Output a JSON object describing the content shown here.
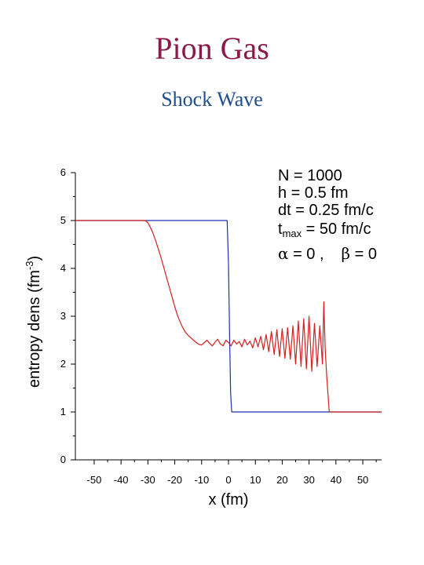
{
  "slide": {
    "title": "Pion Gas",
    "subtitle": "Shock Wave"
  },
  "chart_data": {
    "type": "line",
    "xlabel": "x (fm)",
    "ylabel_parts": [
      "entropy de",
      "ns (",
      "fm",
      "-3",
      ")"
    ],
    "xlim": [
      -57,
      57
    ],
    "ylim": [
      0,
      6
    ],
    "x_ticks": [
      "-50",
      "-40",
      "-30",
      "-20",
      "-10",
      "0",
      "10",
      "20",
      "30",
      "40",
      "50"
    ],
    "x_tick_values": [
      -50,
      -40,
      -30,
      -20,
      -10,
      0,
      10,
      20,
      30,
      40,
      50
    ],
    "y_ticks": [
      "0",
      "1",
      "2",
      "3",
      "4",
      "5",
      "6"
    ],
    "y_tick_values": [
      0,
      1,
      2,
      3,
      4,
      5,
      6
    ],
    "parameters": {
      "n": "N = 1000",
      "h": "h = 0.5 fm",
      "dt": "dt = 0.25 fm/c",
      "tmax_main": "t",
      "tmax_sub": "max",
      "tmax_rest": " = 50 fm/c",
      "alpha": "α",
      "alpha_rest": " = 0 ,",
      "beta": "β",
      "beta_rest": " = 0"
    },
    "colors": {
      "blue": "#1f2fb0",
      "red": "#d42020"
    },
    "series": [
      {
        "color": "blue",
        "x": [
          -57,
          -0.5,
          0.0,
          0.4,
          0.8,
          1.2,
          57
        ],
        "y": [
          5.0,
          5.0,
          4.1,
          2.6,
          1.4,
          1.0,
          1.0
        ]
      },
      {
        "color": "red",
        "x": [
          -57,
          -31,
          -30,
          -29,
          -28,
          -27,
          -26,
          -25,
          -24,
          -23,
          -22,
          -21,
          -20,
          -19,
          -18,
          -17,
          -16,
          -15,
          -14,
          -13,
          -12,
          -11,
          -10,
          -9,
          -8,
          -7,
          -6,
          -5,
          -4,
          -3,
          -2,
          -1,
          0,
          1,
          2,
          3,
          4,
          5,
          6,
          7,
          8,
          9,
          10,
          11,
          12,
          13,
          14,
          15,
          16,
          17,
          18,
          19,
          20,
          21,
          22,
          23,
          24,
          25,
          26,
          27,
          28,
          29,
          30,
          31,
          32,
          33,
          34,
          35,
          35.5,
          36,
          36.5,
          37,
          37.5,
          38,
          57
        ],
        "y": [
          5.0,
          5.0,
          4.95,
          4.85,
          4.72,
          4.56,
          4.38,
          4.2,
          4.0,
          3.8,
          3.6,
          3.4,
          3.2,
          3.02,
          2.88,
          2.76,
          2.66,
          2.6,
          2.55,
          2.5,
          2.45,
          2.41,
          2.4,
          2.45,
          2.5,
          2.43,
          2.38,
          2.46,
          2.52,
          2.42,
          2.38,
          2.5,
          2.45,
          2.38,
          2.5,
          2.42,
          2.47,
          2.36,
          2.52,
          2.4,
          2.48,
          2.34,
          2.55,
          2.36,
          2.58,
          2.3,
          2.62,
          2.26,
          2.68,
          2.2,
          2.72,
          2.16,
          2.74,
          2.12,
          2.76,
          2.1,
          2.8,
          2.0,
          2.9,
          1.95,
          2.95,
          1.9,
          3.0,
          1.85,
          2.85,
          1.95,
          2.8,
          2.0,
          3.3,
          2.3,
          1.8,
          1.4,
          1.0,
          1.0,
          1.0
        ]
      }
    ]
  }
}
